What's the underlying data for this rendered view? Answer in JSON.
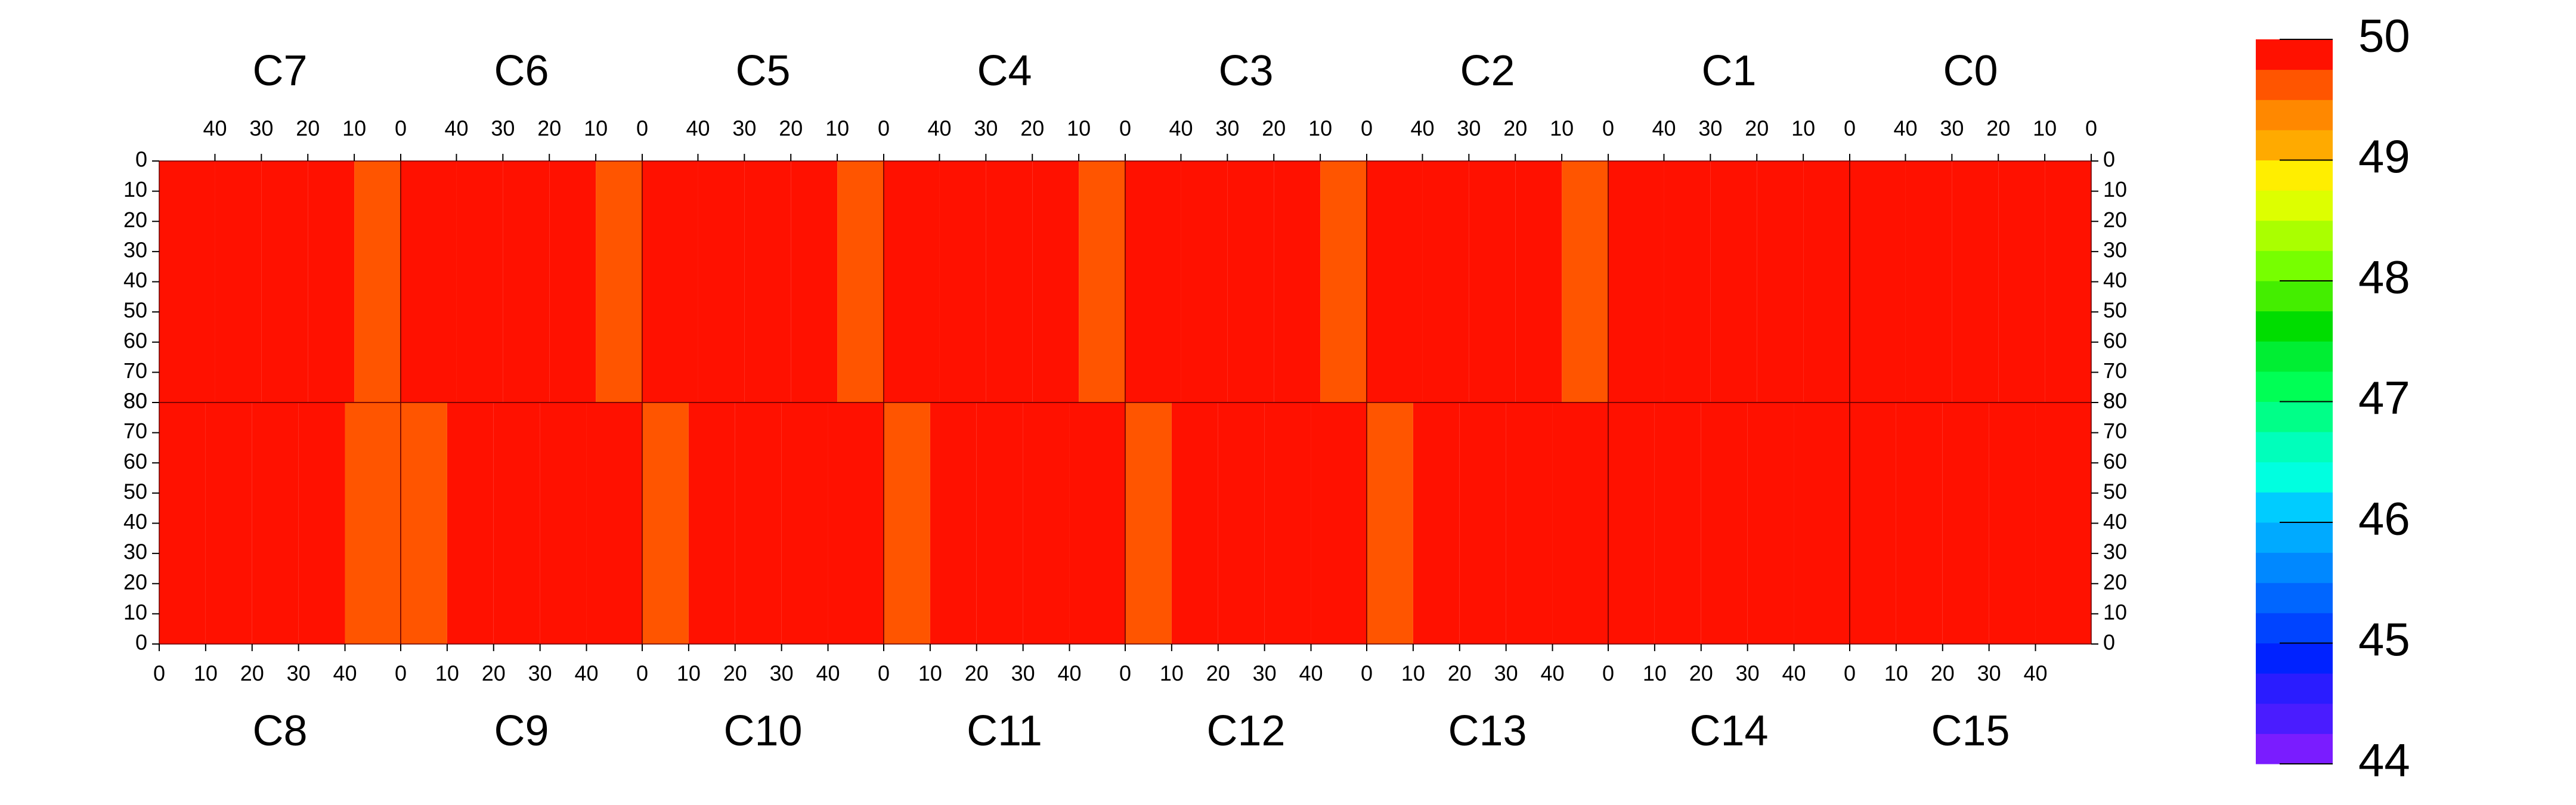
{
  "chart_data": {
    "type": "heatmap",
    "xlim": [
      0,
      52
    ],
    "xticks": [
      0,
      10,
      20,
      30,
      40
    ],
    "ylim": [
      0,
      80
    ],
    "yticks": [
      0,
      10,
      20,
      30,
      40,
      50,
      60,
      70,
      80
    ],
    "column_bins": [
      0,
      10,
      20,
      30,
      40,
      52
    ],
    "top_panels": [
      {
        "name": "C7",
        "values": [
          49.6,
          49.75,
          49.75,
          49.75,
          49.8
        ]
      },
      {
        "name": "C6",
        "values": [
          49.6,
          49.75,
          49.75,
          49.75,
          49.75
        ]
      },
      {
        "name": "C5",
        "values": [
          49.6,
          49.75,
          49.75,
          49.75,
          49.75
        ]
      },
      {
        "name": "C4",
        "values": [
          49.5,
          49.75,
          49.75,
          49.75,
          49.75
        ]
      },
      {
        "name": "C3",
        "values": [
          49.6,
          49.75,
          49.75,
          49.75,
          49.75
        ]
      },
      {
        "name": "C2",
        "values": [
          49.6,
          49.75,
          49.75,
          49.9,
          49.9
        ]
      },
      {
        "name": "C1",
        "values": [
          49.9,
          49.9,
          49.9,
          49.9,
          49.9
        ]
      },
      {
        "name": "C0",
        "values": [
          49.9,
          49.9,
          49.9,
          49.9,
          49.9
        ]
      }
    ],
    "bottom_panels": [
      {
        "name": "C8",
        "values": [
          49.75,
          49.75,
          49.75,
          49.75,
          49.6
        ]
      },
      {
        "name": "C9",
        "values": [
          49.6,
          49.75,
          49.75,
          49.75,
          49.75
        ]
      },
      {
        "name": "C10",
        "values": [
          49.6,
          49.75,
          49.75,
          49.75,
          49.75
        ]
      },
      {
        "name": "C11",
        "values": [
          49.5,
          49.75,
          49.75,
          49.75,
          49.75
        ]
      },
      {
        "name": "C12",
        "values": [
          49.6,
          49.75,
          49.75,
          49.75,
          49.75
        ]
      },
      {
        "name": "C13",
        "values": [
          49.6,
          49.75,
          49.75,
          49.9,
          49.9
        ]
      },
      {
        "name": "C14",
        "values": [
          49.9,
          49.9,
          49.9,
          49.9,
          49.9
        ]
      },
      {
        "name": "C15",
        "values": [
          49.9,
          49.9,
          49.9,
          49.9,
          49.9
        ]
      }
    ],
    "colorbar": {
      "lim": [
        44,
        50
      ],
      "ticks": [
        44,
        45,
        46,
        47,
        48,
        49,
        50
      ],
      "colors": [
        "#7a1cff",
        "#4a1cff",
        "#2a1cff",
        "#0022ff",
        "#0044ff",
        "#0066ff",
        "#0088ff",
        "#00aaff",
        "#00ccff",
        "#00ffe0",
        "#00ffbb",
        "#00ff88",
        "#00ff55",
        "#00ee33",
        "#00dd00",
        "#44ee00",
        "#77ff00",
        "#aaff00",
        "#ddff00",
        "#ffee00",
        "#ffaa00",
        "#ff8800",
        "#ff5500",
        "#ff1100"
      ]
    }
  }
}
